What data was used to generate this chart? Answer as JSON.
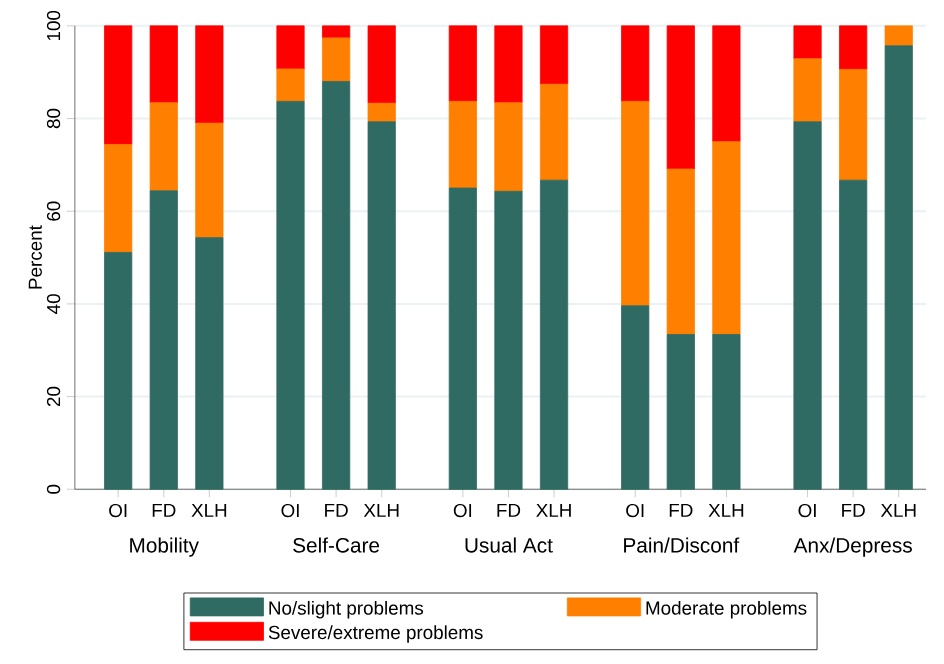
{
  "chart_data": {
    "type": "bar",
    "stacked": true,
    "ylabel": "Percent",
    "categories": [
      "OI",
      "FD",
      "XLH",
      "OI",
      "FD",
      "XLH",
      "OI",
      "FD",
      "XLH",
      "OI",
      "FD",
      "XLH",
      "OI",
      "FD",
      "XLH"
    ],
    "annotations": [
      "Mobility",
      "Self-Care",
      "Usual Act",
      "Pain/Disconf",
      "Anx/Depress"
    ],
    "series": [
      {
        "name": "No/slight problems",
        "color": "#2f6b62",
        "values": [
          51.1,
          64.4,
          54.3,
          83.7,
          88.0,
          79.3,
          65.0,
          64.3,
          66.7,
          39.6,
          33.4,
          33.4,
          79.3,
          66.7,
          95.7
        ]
      },
      {
        "name": "Moderate problems",
        "color": "#ff7f00",
        "values": [
          23.3,
          19.0,
          24.7,
          7.0,
          9.4,
          4.0,
          18.7,
          19.1,
          20.7,
          44.1,
          35.7,
          41.6,
          13.6,
          23.9,
          4.3
        ]
      },
      {
        "name": "Severe/extreme problems",
        "color": "#ff0000",
        "values": [
          25.6,
          16.6,
          21.0,
          9.3,
          2.6,
          16.7,
          16.3,
          16.6,
          12.6,
          16.3,
          30.9,
          25.0,
          7.1,
          9.4,
          0.0
        ]
      }
    ],
    "ylim": [
      0,
      100
    ],
    "yticks": [
      0,
      20,
      40,
      60,
      80,
      100
    ],
    "grid": "y",
    "legend": "bottom"
  }
}
